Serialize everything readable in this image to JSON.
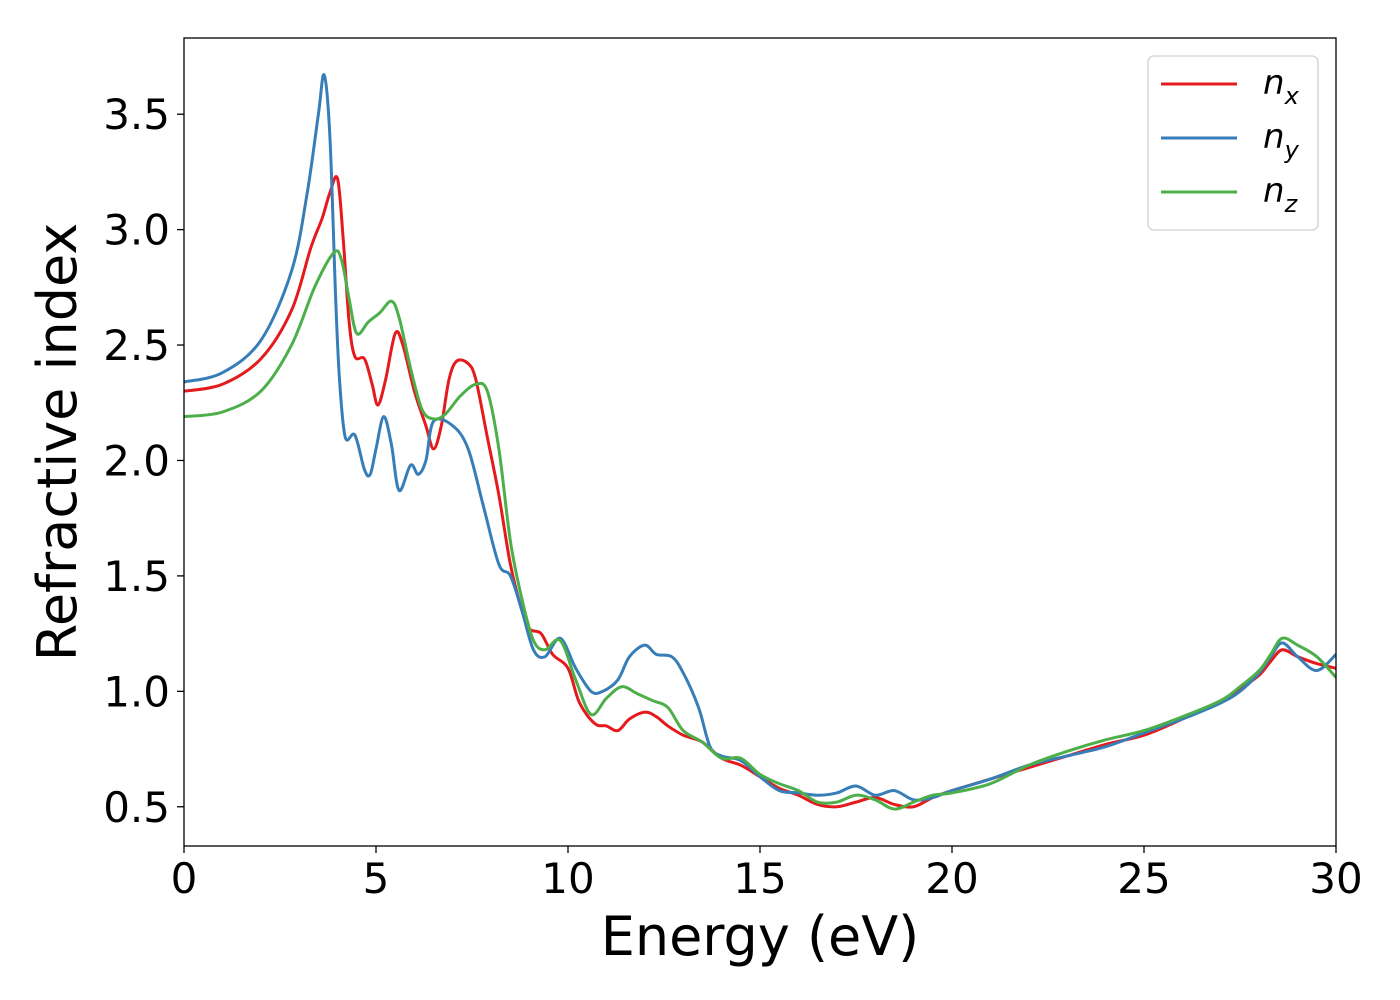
{
  "chart_data": {
    "type": "line",
    "xlabel": "Energy (eV)",
    "ylabel": "Refractive index",
    "xlim": [
      0,
      30
    ],
    "ylim": [
      0.33,
      3.83
    ],
    "xticks": [
      0,
      5,
      10,
      15,
      20,
      25,
      30
    ],
    "xtick_labels": [
      "0",
      "5",
      "10",
      "15",
      "20",
      "25",
      "30"
    ],
    "yticks": [
      0.5,
      1.0,
      1.5,
      2.0,
      2.5,
      3.0,
      3.5
    ],
    "ytick_labels": [
      "0.5",
      "1.0",
      "1.5",
      "2.0",
      "2.5",
      "3.0",
      "3.5"
    ],
    "grid": false,
    "legend_position": "top-right",
    "series": [
      {
        "name": "n",
        "subscript": "x",
        "color": "#e41a1c",
        "points": [
          [
            0,
            2.3
          ],
          [
            1,
            2.33
          ],
          [
            2,
            2.44
          ],
          [
            2.8,
            2.65
          ],
          [
            3.3,
            2.92
          ],
          [
            3.6,
            3.05
          ],
          [
            3.8,
            3.16
          ],
          [
            4.0,
            3.22
          ],
          [
            4.15,
            2.95
          ],
          [
            4.3,
            2.6
          ],
          [
            4.45,
            2.45
          ],
          [
            4.7,
            2.44
          ],
          [
            4.9,
            2.33
          ],
          [
            5.05,
            2.24
          ],
          [
            5.25,
            2.35
          ],
          [
            5.5,
            2.55
          ],
          [
            5.7,
            2.5
          ],
          [
            6.0,
            2.3
          ],
          [
            6.3,
            2.15
          ],
          [
            6.5,
            2.05
          ],
          [
            6.7,
            2.15
          ],
          [
            6.9,
            2.35
          ],
          [
            7.1,
            2.43
          ],
          [
            7.4,
            2.42
          ],
          [
            7.6,
            2.35
          ],
          [
            7.9,
            2.1
          ],
          [
            8.2,
            1.85
          ],
          [
            8.5,
            1.55
          ],
          [
            8.8,
            1.35
          ],
          [
            9.0,
            1.27
          ],
          [
            9.3,
            1.25
          ],
          [
            9.6,
            1.16
          ],
          [
            10.0,
            1.1
          ],
          [
            10.3,
            0.95
          ],
          [
            10.7,
            0.86
          ],
          [
            11.0,
            0.85
          ],
          [
            11.3,
            0.83
          ],
          [
            11.6,
            0.88
          ],
          [
            12.0,
            0.91
          ],
          [
            12.3,
            0.89
          ],
          [
            12.6,
            0.85
          ],
          [
            13.0,
            0.81
          ],
          [
            13.5,
            0.78
          ],
          [
            14.0,
            0.71
          ],
          [
            14.5,
            0.68
          ],
          [
            15.0,
            0.63
          ],
          [
            15.5,
            0.58
          ],
          [
            16.0,
            0.55
          ],
          [
            16.5,
            0.51
          ],
          [
            17.0,
            0.5
          ],
          [
            17.5,
            0.52
          ],
          [
            18.0,
            0.54
          ],
          [
            18.5,
            0.51
          ],
          [
            19.0,
            0.5
          ],
          [
            19.5,
            0.54
          ],
          [
            20.0,
            0.57
          ],
          [
            21.0,
            0.62
          ],
          [
            22.0,
            0.67
          ],
          [
            23.0,
            0.72
          ],
          [
            24.0,
            0.77
          ],
          [
            25.0,
            0.81
          ],
          [
            26.0,
            0.88
          ],
          [
            27.0,
            0.96
          ],
          [
            27.5,
            1.01
          ],
          [
            28.0,
            1.07
          ],
          [
            28.3,
            1.13
          ],
          [
            28.6,
            1.18
          ],
          [
            29.0,
            1.15
          ],
          [
            29.5,
            1.12
          ],
          [
            30.0,
            1.1
          ]
        ]
      },
      {
        "name": "n",
        "subscript": "y",
        "color": "#377eb8",
        "points": [
          [
            0,
            2.34
          ],
          [
            1,
            2.38
          ],
          [
            2,
            2.52
          ],
          [
            2.8,
            2.82
          ],
          [
            3.2,
            3.15
          ],
          [
            3.5,
            3.5
          ],
          [
            3.65,
            3.67
          ],
          [
            3.8,
            3.4
          ],
          [
            3.95,
            2.7
          ],
          [
            4.05,
            2.35
          ],
          [
            4.2,
            2.1
          ],
          [
            4.45,
            2.11
          ],
          [
            4.7,
            1.96
          ],
          [
            4.85,
            1.94
          ],
          [
            5.0,
            2.05
          ],
          [
            5.2,
            2.19
          ],
          [
            5.4,
            2.07
          ],
          [
            5.6,
            1.87
          ],
          [
            5.9,
            1.98
          ],
          [
            6.1,
            1.94
          ],
          [
            6.3,
            2.0
          ],
          [
            6.5,
            2.17
          ],
          [
            7.0,
            2.15
          ],
          [
            7.4,
            2.05
          ],
          [
            7.8,
            1.8
          ],
          [
            8.2,
            1.55
          ],
          [
            8.5,
            1.5
          ],
          [
            8.8,
            1.35
          ],
          [
            9.1,
            1.18
          ],
          [
            9.4,
            1.15
          ],
          [
            9.8,
            1.23
          ],
          [
            10.2,
            1.1
          ],
          [
            10.6,
            1.0
          ],
          [
            10.9,
            1.0
          ],
          [
            11.3,
            1.05
          ],
          [
            11.6,
            1.15
          ],
          [
            12.0,
            1.2
          ],
          [
            12.3,
            1.16
          ],
          [
            12.7,
            1.15
          ],
          [
            13.0,
            1.08
          ],
          [
            13.4,
            0.93
          ],
          [
            13.7,
            0.76
          ],
          [
            14.0,
            0.72
          ],
          [
            14.5,
            0.7
          ],
          [
            15.0,
            0.63
          ],
          [
            15.5,
            0.57
          ],
          [
            16.0,
            0.56
          ],
          [
            16.5,
            0.55
          ],
          [
            17.0,
            0.56
          ],
          [
            17.5,
            0.59
          ],
          [
            18.0,
            0.55
          ],
          [
            18.5,
            0.57
          ],
          [
            19.0,
            0.53
          ],
          [
            19.5,
            0.54
          ],
          [
            20.0,
            0.57
          ],
          [
            21.0,
            0.62
          ],
          [
            22.0,
            0.68
          ],
          [
            23.0,
            0.72
          ],
          [
            24.0,
            0.76
          ],
          [
            25.0,
            0.82
          ],
          [
            26.0,
            0.88
          ],
          [
            27.0,
            0.95
          ],
          [
            27.5,
            1.0
          ],
          [
            28.0,
            1.08
          ],
          [
            28.3,
            1.15
          ],
          [
            28.6,
            1.21
          ],
          [
            29.0,
            1.15
          ],
          [
            29.5,
            1.09
          ],
          [
            30.0,
            1.16
          ]
        ]
      },
      {
        "name": "n",
        "subscript": "z",
        "color": "#4daf4a",
        "points": [
          [
            0,
            2.19
          ],
          [
            1,
            2.21
          ],
          [
            2,
            2.3
          ],
          [
            2.8,
            2.5
          ],
          [
            3.4,
            2.75
          ],
          [
            3.9,
            2.9
          ],
          [
            4.1,
            2.87
          ],
          [
            4.3,
            2.7
          ],
          [
            4.5,
            2.55
          ],
          [
            4.8,
            2.6
          ],
          [
            5.1,
            2.64
          ],
          [
            5.4,
            2.69
          ],
          [
            5.6,
            2.62
          ],
          [
            5.9,
            2.4
          ],
          [
            6.2,
            2.22
          ],
          [
            6.5,
            2.18
          ],
          [
            6.8,
            2.2
          ],
          [
            7.2,
            2.28
          ],
          [
            7.6,
            2.33
          ],
          [
            7.9,
            2.3
          ],
          [
            8.2,
            2.05
          ],
          [
            8.5,
            1.65
          ],
          [
            8.8,
            1.4
          ],
          [
            9.1,
            1.22
          ],
          [
            9.4,
            1.18
          ],
          [
            9.8,
            1.22
          ],
          [
            10.2,
            1.05
          ],
          [
            10.6,
            0.9
          ],
          [
            11.0,
            0.97
          ],
          [
            11.4,
            1.02
          ],
          [
            11.8,
            0.99
          ],
          [
            12.2,
            0.96
          ],
          [
            12.6,
            0.93
          ],
          [
            13.0,
            0.83
          ],
          [
            13.5,
            0.78
          ],
          [
            14.0,
            0.71
          ],
          [
            14.5,
            0.71
          ],
          [
            15.0,
            0.64
          ],
          [
            15.5,
            0.6
          ],
          [
            16.0,
            0.57
          ],
          [
            16.5,
            0.52
          ],
          [
            17.0,
            0.52
          ],
          [
            17.5,
            0.55
          ],
          [
            18.0,
            0.53
          ],
          [
            18.5,
            0.49
          ],
          [
            19.0,
            0.52
          ],
          [
            19.5,
            0.55
          ],
          [
            20.0,
            0.56
          ],
          [
            21.0,
            0.6
          ],
          [
            22.0,
            0.68
          ],
          [
            23.0,
            0.74
          ],
          [
            24.0,
            0.79
          ],
          [
            25.0,
            0.83
          ],
          [
            26.0,
            0.89
          ],
          [
            27.0,
            0.96
          ],
          [
            27.5,
            1.02
          ],
          [
            28.0,
            1.09
          ],
          [
            28.3,
            1.16
          ],
          [
            28.6,
            1.23
          ],
          [
            29.0,
            1.2
          ],
          [
            29.5,
            1.15
          ],
          [
            30.0,
            1.06
          ]
        ]
      }
    ]
  }
}
